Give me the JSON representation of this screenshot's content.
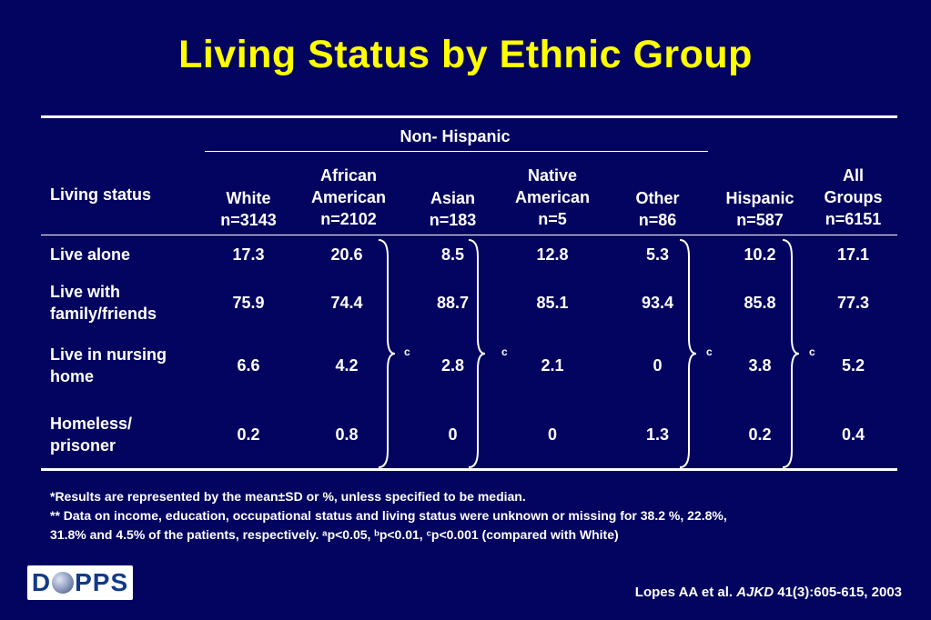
{
  "title": "Living Status by Ethnic Group",
  "table": {
    "group_header": "Non- Hispanic",
    "row_header": "Living status",
    "columns": [
      {
        "label": "White\nn=3143"
      },
      {
        "label": "African\nAmerican\nn=2102"
      },
      {
        "label": "Asian\nn=183"
      },
      {
        "label": "Native\nAmerican\nn=5"
      },
      {
        "label": "Other\nn=86"
      },
      {
        "label": "Hispanic\nn=587"
      },
      {
        "label": "All\nGroups\nn=6151"
      }
    ],
    "rows": [
      {
        "label": "Live alone",
        "values": [
          "17.3",
          "20.6",
          "8.5",
          "12.8",
          "5.3",
          "10.2",
          "17.1"
        ]
      },
      {
        "label": "Live with\nfamily/friends",
        "values": [
          "75.9",
          "74.4",
          "88.7",
          "85.1",
          "93.4",
          "85.8",
          "77.3"
        ]
      },
      {
        "label": "Live in nursing\nhome",
        "values": [
          "6.6",
          "4.2",
          "2.8",
          "2.1",
          "0",
          "3.8",
          "5.2"
        ]
      },
      {
        "label": "Homeless/\nprisoner",
        "values": [
          "0.2",
          "0.8",
          "0",
          "0",
          "1.3",
          "0.2",
          "0.4"
        ]
      }
    ],
    "significance_mark": "c"
  },
  "footnotes": {
    "line1": "*Results are represented by the mean±SD or %, unless specified to be median.",
    "line2": "** Data on income, education, occupational status and living status were unknown or missing for 38.2 %, 22.8%,",
    "line3": "31.8% and 4.5% of the patients, respectively. ᵃp<0.05, ᵇp<0.01, ᶜp<0.001 (compared with White)"
  },
  "logo_text_left": "D",
  "logo_text_right": "PPS",
  "citation": {
    "prefix": "Lopes AA et al.",
    "journal": "AJKD",
    "suffix": "41(3):605-615, 2003"
  },
  "colors": {
    "background": "#03045f",
    "title": "#ffff00",
    "text": "#ffffff"
  }
}
